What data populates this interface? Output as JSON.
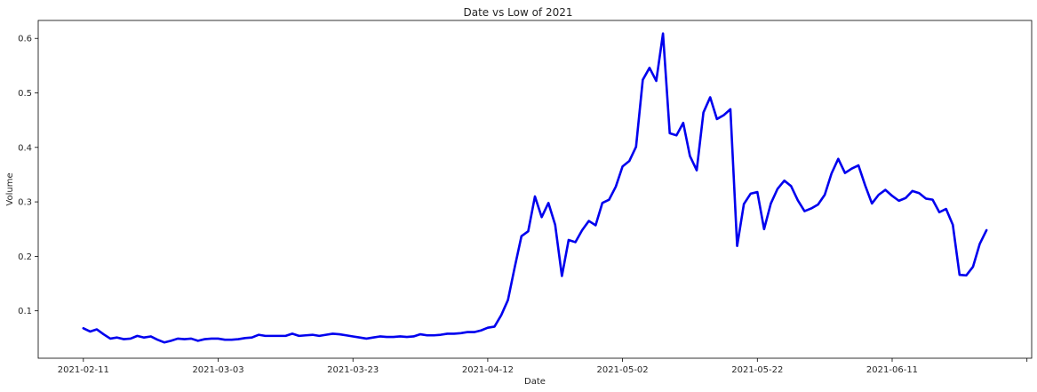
{
  "chart_data": {
    "type": "line",
    "title": "Date vs Low of 2021",
    "xlabel": "Date",
    "ylabel": "Volume",
    "x_ticks": [
      "2021-02-11",
      "2021-03-03",
      "2021-03-23",
      "2021-04-12",
      "2021-05-02",
      "2021-05-22",
      "2021-06-11"
    ],
    "ylim": [
      0.013,
      0.633
    ],
    "y_ticks": [
      0.1,
      0.2,
      0.3,
      0.4,
      0.5,
      0.6
    ],
    "y_tick_labels": [
      "0.1",
      "0.2",
      "0.3",
      "0.4",
      "0.5",
      "0.6"
    ],
    "grid": false,
    "line_color": "#0000ee",
    "series": [
      {
        "x": [
          "2021-02-11",
          "2021-02-12",
          "2021-02-13",
          "2021-02-14",
          "2021-02-15",
          "2021-02-16",
          "2021-02-17",
          "2021-02-18",
          "2021-02-19",
          "2021-02-20",
          "2021-02-21",
          "2021-02-22",
          "2021-02-23",
          "2021-02-24",
          "2021-02-25",
          "2021-02-26",
          "2021-02-27",
          "2021-02-28",
          "2021-03-01",
          "2021-03-02",
          "2021-03-03",
          "2021-03-04",
          "2021-03-05",
          "2021-03-06",
          "2021-03-07",
          "2021-03-08",
          "2021-03-09",
          "2021-03-10",
          "2021-03-11",
          "2021-03-12",
          "2021-03-13",
          "2021-03-14",
          "2021-03-15",
          "2021-03-16",
          "2021-03-17",
          "2021-03-18",
          "2021-03-19",
          "2021-03-20",
          "2021-03-21",
          "2021-03-22",
          "2021-03-23",
          "2021-03-24",
          "2021-03-25",
          "2021-03-26",
          "2021-03-27",
          "2021-03-28",
          "2021-03-29",
          "2021-03-30",
          "2021-03-31",
          "2021-04-01",
          "2021-04-02",
          "2021-04-03",
          "2021-04-04",
          "2021-04-05",
          "2021-04-06",
          "2021-04-07",
          "2021-04-08",
          "2021-04-09",
          "2021-04-10",
          "2021-04-11",
          "2021-04-12",
          "2021-04-13",
          "2021-04-14",
          "2021-04-15",
          "2021-04-16",
          "2021-04-17",
          "2021-04-18",
          "2021-04-19",
          "2021-04-20",
          "2021-04-21",
          "2021-04-22",
          "2021-04-23",
          "2021-04-24",
          "2021-04-25",
          "2021-04-26",
          "2021-04-27",
          "2021-04-28",
          "2021-04-29",
          "2021-04-30",
          "2021-05-01",
          "2021-05-02",
          "2021-05-03",
          "2021-05-04",
          "2021-05-05",
          "2021-05-06",
          "2021-05-07",
          "2021-05-08",
          "2021-05-09",
          "2021-05-10",
          "2021-05-11",
          "2021-05-12",
          "2021-05-13",
          "2021-05-14",
          "2021-05-15",
          "2021-05-16",
          "2021-05-17",
          "2021-05-18",
          "2021-05-19",
          "2021-05-20",
          "2021-05-21",
          "2021-05-22",
          "2021-05-23",
          "2021-05-24",
          "2021-05-25",
          "2021-05-26",
          "2021-05-27",
          "2021-05-28",
          "2021-05-29",
          "2021-05-30",
          "2021-05-31",
          "2021-06-01",
          "2021-06-02",
          "2021-06-03",
          "2021-06-04",
          "2021-06-05",
          "2021-06-06",
          "2021-06-07",
          "2021-06-08",
          "2021-06-09",
          "2021-06-10",
          "2021-06-11",
          "2021-06-12",
          "2021-06-13",
          "2021-06-14",
          "2021-06-15",
          "2021-06-16",
          "2021-06-17",
          "2021-06-18",
          "2021-06-19",
          "2021-06-20",
          "2021-06-21",
          "2021-06-22",
          "2021-06-23",
          "2021-06-24",
          "2021-06-25"
        ],
        "values": [
          0.068,
          0.062,
          0.066,
          0.057,
          0.049,
          0.051,
          0.048,
          0.049,
          0.054,
          0.051,
          0.053,
          0.047,
          0.042,
          0.045,
          0.049,
          0.048,
          0.049,
          0.045,
          0.048,
          0.049,
          0.049,
          0.047,
          0.047,
          0.048,
          0.05,
          0.051,
          0.056,
          0.054,
          0.054,
          0.054,
          0.054,
          0.058,
          0.054,
          0.055,
          0.056,
          0.054,
          0.056,
          0.058,
          0.057,
          0.055,
          0.053,
          0.051,
          0.049,
          0.051,
          0.053,
          0.052,
          0.052,
          0.053,
          0.052,
          0.053,
          0.057,
          0.055,
          0.055,
          0.056,
          0.058,
          0.058,
          0.059,
          0.061,
          0.061,
          0.064,
          0.069,
          0.071,
          0.092,
          0.12,
          0.18,
          0.237,
          0.246,
          0.31,
          0.272,
          0.298,
          0.258,
          0.164,
          0.23,
          0.226,
          0.248,
          0.265,
          0.257,
          0.298,
          0.304,
          0.328,
          0.365,
          0.375,
          0.401,
          0.524,
          0.546,
          0.522,
          0.609,
          0.426,
          0.422,
          0.445,
          0.384,
          0.358,
          0.464,
          0.492,
          0.452,
          0.459,
          0.47,
          0.219,
          0.296,
          0.315,
          0.318,
          0.25,
          0.297,
          0.324,
          0.339,
          0.329,
          0.303,
          0.283,
          0.288,
          0.295,
          0.313,
          0.352,
          0.379,
          0.353,
          0.361,
          0.367,
          0.33,
          0.297,
          0.313,
          0.322,
          0.311,
          0.302,
          0.307,
          0.32,
          0.316,
          0.306,
          0.304,
          0.281,
          0.287,
          0.258,
          0.166,
          0.165,
          0.181,
          0.223,
          0.248
        ]
      }
    ]
  }
}
